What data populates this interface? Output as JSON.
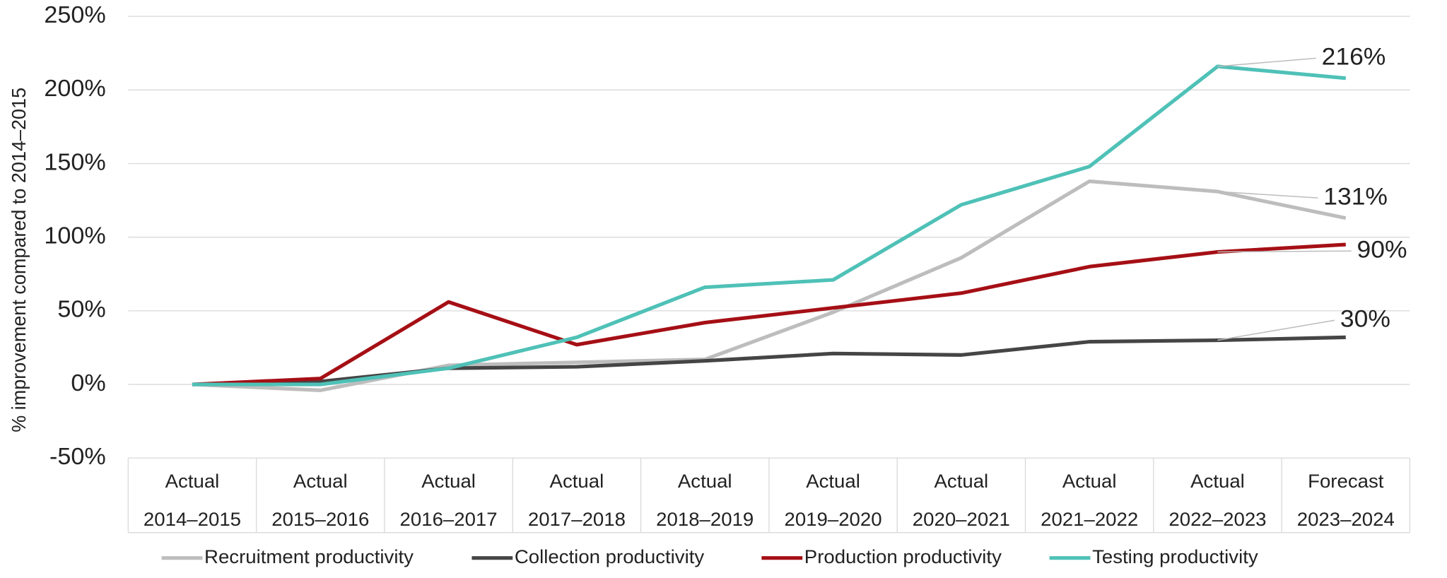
{
  "chart_data": {
    "type": "line",
    "y_label": "% improvement compared to 2014–2015",
    "categories": [
      [
        "Actual",
        "2014–2015"
      ],
      [
        "Actual",
        "2015–2016"
      ],
      [
        "Actual",
        "2016–2017"
      ],
      [
        "Actual",
        "2017–2018"
      ],
      [
        "Actual",
        "2018–2019"
      ],
      [
        "Actual",
        "2019–2020"
      ],
      [
        "Actual",
        "2020–2021"
      ],
      [
        "Actual",
        "2021–2022"
      ],
      [
        "Actual",
        "2022–2023"
      ],
      [
        "Forecast",
        "2023–2024"
      ]
    ],
    "ylim": [
      -50,
      250
    ],
    "yticks": [
      {
        "value": -50,
        "label": "-50%"
      },
      {
        "value": 0,
        "label": "0%"
      },
      {
        "value": 50,
        "label": "50%"
      },
      {
        "value": 100,
        "label": "100%"
      },
      {
        "value": 150,
        "label": "150%"
      },
      {
        "value": 200,
        "label": "200%"
      },
      {
        "value": 250,
        "label": "250%"
      }
    ],
    "grid": true,
    "legend": "bottom",
    "series": [
      {
        "name": "Recruitment productivity",
        "color": "#bdbdbd",
        "values": [
          0,
          -4,
          13,
          15,
          17,
          49,
          86,
          138,
          131,
          113
        ],
        "value_labels": [
          null,
          null,
          null,
          null,
          null,
          null,
          null,
          null,
          "131%",
          null
        ]
      },
      {
        "name": "Collection productivity",
        "color": "#454545",
        "values": [
          0,
          2,
          11,
          12,
          16,
          21,
          20,
          29,
          30,
          32
        ],
        "value_labels": [
          null,
          null,
          null,
          null,
          null,
          null,
          null,
          null,
          "30%",
          null
        ]
      },
      {
        "name": "Production productivity",
        "color": "#a50f15",
        "values": [
          0,
          4,
          56,
          27,
          42,
          52,
          62,
          80,
          90,
          95
        ],
        "value_labels": [
          null,
          null,
          null,
          null,
          null,
          null,
          null,
          null,
          "90%",
          null
        ]
      },
      {
        "name": "Testing productivity",
        "color": "#4fc1b7",
        "values": [
          0,
          0,
          11,
          32,
          66,
          71,
          122,
          148,
          216,
          208
        ],
        "value_labels": [
          null,
          null,
          null,
          null,
          null,
          null,
          null,
          null,
          "216%",
          null
        ]
      }
    ]
  }
}
